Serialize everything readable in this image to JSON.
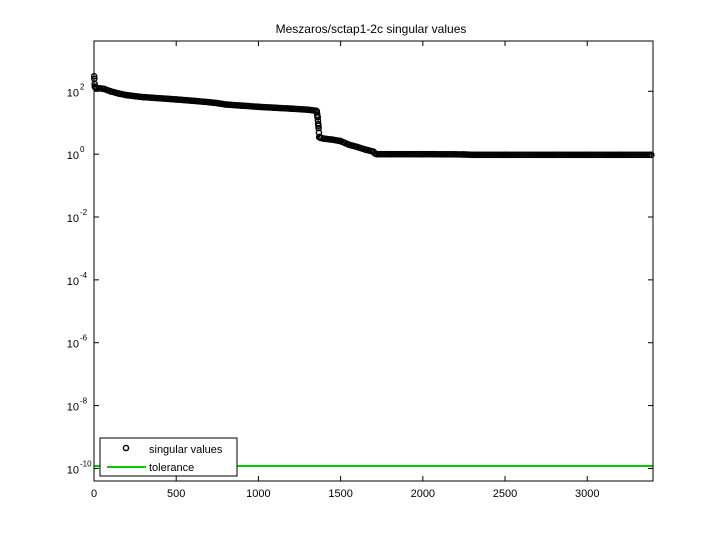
{
  "chart_data": {
    "type": "scatter",
    "title": "Meszaros/sctap1-2c singular values",
    "xlabel": "",
    "ylabel": "",
    "xlim": [
      0,
      3400
    ],
    "ylim_log10": [
      -10.4,
      3.6
    ],
    "y_scale": "log",
    "grid": false,
    "legend_position": "bottom-left",
    "x_ticks": [
      {
        "value": 0,
        "label": "0"
      },
      {
        "value": 500,
        "label": "500"
      },
      {
        "value": 1000,
        "label": "1000"
      },
      {
        "value": 1500,
        "label": "1500"
      },
      {
        "value": 2000,
        "label": "2000"
      },
      {
        "value": 2500,
        "label": "2500"
      },
      {
        "value": 3000,
        "label": "3000"
      }
    ],
    "y_ticks": [
      {
        "exp": 2,
        "base": "10",
        "sup": "2"
      },
      {
        "exp": 0,
        "base": "10",
        "sup": "0"
      },
      {
        "exp": -2,
        "base": "10",
        "sup": "-2"
      },
      {
        "exp": -4,
        "base": "10",
        "sup": "-4"
      },
      {
        "exp": -6,
        "base": "10",
        "sup": "-6"
      },
      {
        "exp": -8,
        "base": "10",
        "sup": "-8"
      },
      {
        "exp": -10,
        "base": "10",
        "sup": "-10"
      }
    ],
    "series": [
      {
        "name": "singular values",
        "marker": "circle-open",
        "color": "#000000",
        "x": [
          1,
          2,
          5,
          10,
          30,
          60,
          100,
          150,
          200,
          250,
          300,
          400,
          500,
          600,
          700,
          750,
          800,
          900,
          1000,
          1100,
          1200,
          1300,
          1350,
          1355,
          1360,
          1365,
          1370,
          1380,
          1400,
          1450,
          1500,
          1550,
          1600,
          1650,
          1700,
          1710,
          1720,
          1800,
          2000,
          2250,
          2300,
          2500,
          2800,
          3000,
          3200,
          3390
        ],
        "y": [
          300,
          250,
          140,
          130,
          125,
          120,
          100,
          85,
          75,
          70,
          65,
          60,
          55,
          50,
          45,
          42,
          38,
          35,
          32,
          30,
          28,
          26,
          24,
          23,
          15,
          8,
          3.5,
          3.3,
          3.1,
          2.9,
          2.6,
          2.0,
          1.7,
          1.4,
          1.2,
          1.05,
          1.0,
          1.0,
          1.0,
          0.98,
          0.95,
          0.95,
          0.95,
          0.95,
          0.95,
          0.95
        ]
      },
      {
        "name": "tolerance",
        "marker": "line",
        "color": "#00cc00",
        "x": [
          0,
          3400
        ],
        "y": [
          1.2e-10,
          1.2e-10
        ]
      }
    ]
  }
}
